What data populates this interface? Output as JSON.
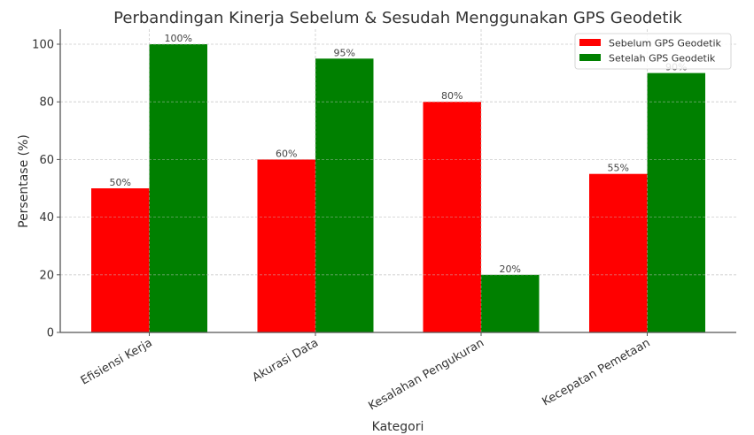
{
  "chart_data": {
    "type": "bar",
    "title": "Perbandingan Kinerja Sebelum & Sesudah Menggunakan GPS Geodetik",
    "xlabel": "Kategori",
    "ylabel": "Persentase (%)",
    "categories": [
      "Efisiensi Kerja",
      "Akurasi Data",
      "Kesalahan Pengukuran",
      "Kecepatan Pemetaan"
    ],
    "series": [
      {
        "name": "Sebelum GPS Geodetik",
        "color": "#ff0000",
        "values": [
          50,
          60,
          80,
          55
        ]
      },
      {
        "name": "Setelah GPS Geodetik",
        "color": "#008000",
        "values": [
          100,
          95,
          20,
          90
        ]
      }
    ],
    "ylim": [
      0,
      105
    ],
    "yticks": [
      0,
      20,
      40,
      60,
      80,
      100
    ],
    "grid": true,
    "legend_position": "upper right",
    "value_label_suffix": "%"
  }
}
